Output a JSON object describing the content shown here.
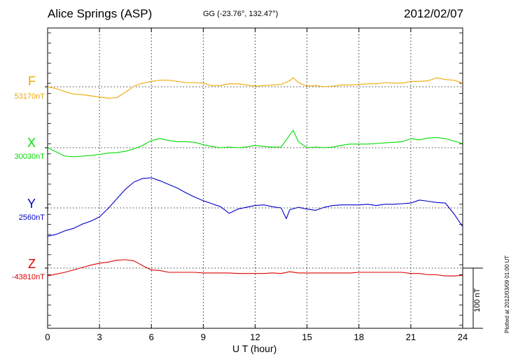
{
  "header": {
    "station": "Alice Springs (ASP)",
    "coords": "GG (-23.76°, 132.47°)",
    "date": "2012/02/07"
  },
  "components": [
    {
      "letter": "F",
      "baseline": "53170nT",
      "color": "#f0a800"
    },
    {
      "letter": "X",
      "baseline": "30030nT",
      "color": "#00dd00"
    },
    {
      "letter": "Y",
      "baseline": "2560nT",
      "color": "#0000cc"
    },
    {
      "letter": "Z",
      "baseline": "-43810nT",
      "color": "#dd0000"
    }
  ],
  "scale_bar": {
    "label": "100 nT",
    "value_nT": 100
  },
  "footer": {
    "plotted": "Plotted at 2012/03/09 01:00 UT"
  },
  "chart_data": {
    "type": "line",
    "title": "Alice Springs (ASP)",
    "xlabel": "U T (hour)",
    "ylabel": "",
    "xlim": [
      0,
      24
    ],
    "x_ticks": [
      0,
      3,
      6,
      9,
      12,
      15,
      18,
      21,
      24
    ],
    "grid": true,
    "units": "nT",
    "series": [
      {
        "name": "F",
        "baseline_nT": 53170,
        "x": [
          0,
          0.5,
          1,
          1.5,
          2,
          2.5,
          3,
          3.5,
          4,
          4.5,
          5,
          5.5,
          6,
          6.5,
          7,
          7.5,
          8,
          8.5,
          9,
          9.5,
          10,
          10.5,
          11,
          11.5,
          12,
          12.5,
          13,
          13.5,
          14,
          14.2,
          14.5,
          15,
          15.5,
          16,
          16.5,
          17,
          17.5,
          18,
          18.5,
          19,
          19.5,
          20,
          20.5,
          21,
          21.5,
          22,
          22.5,
          23,
          23.5,
          24
        ],
        "values": [
          0,
          -3,
          -8,
          -12,
          -13,
          -15,
          -17,
          -19,
          -18,
          -9,
          1,
          6,
          9,
          11,
          11,
          9,
          7,
          7,
          6,
          2,
          2,
          5,
          5,
          3,
          1,
          2,
          3,
          4,
          10,
          15,
          7,
          1,
          2,
          0,
          1,
          3,
          3,
          4,
          5,
          5,
          7,
          6,
          6,
          9,
          9,
          10,
          15,
          12,
          11,
          6
        ]
      },
      {
        "name": "X",
        "baseline_nT": 30030,
        "x": [
          0,
          0.5,
          1,
          1.5,
          2,
          2.5,
          3,
          3.5,
          4,
          4.5,
          5,
          5.5,
          6,
          6.5,
          7,
          7.5,
          8,
          8.5,
          9,
          9.5,
          10,
          10.5,
          11,
          11.5,
          12,
          12.5,
          13,
          13.5,
          14,
          14.2,
          14.5,
          15,
          15.5,
          16,
          16.5,
          17,
          17.5,
          18,
          18.5,
          19,
          19.5,
          20,
          20.5,
          21,
          21.5,
          22,
          22.5,
          23,
          23.5,
          24
        ],
        "values": [
          0,
          -7,
          -14,
          -15,
          -14,
          -13,
          -11,
          -9,
          -8,
          -6,
          -2,
          4,
          12,
          15,
          12,
          10,
          10,
          9,
          5,
          2,
          0,
          1,
          0,
          1,
          4,
          2,
          1,
          1,
          21,
          29,
          10,
          0,
          1,
          0,
          1,
          4,
          6,
          6,
          6,
          7,
          8,
          9,
          10,
          15,
          13,
          16,
          17,
          15,
          11,
          7
        ]
      },
      {
        "name": "Y",
        "baseline_nT": 2560,
        "x": [
          0,
          0.5,
          1,
          1.5,
          2,
          2.5,
          3,
          3.5,
          4,
          4.5,
          5,
          5.5,
          6,
          6.5,
          7,
          7.5,
          8,
          8.5,
          9,
          9.5,
          10,
          10.5,
          11,
          11.5,
          12,
          12.5,
          13,
          13.5,
          13.8,
          14,
          14.5,
          15,
          15.5,
          16,
          16.5,
          17,
          17.5,
          18,
          18.5,
          19,
          19.5,
          20,
          20.5,
          21,
          21.5,
          22,
          22.5,
          23,
          23.5,
          24
        ],
        "values": [
          -47,
          -44,
          -38,
          -34,
          -27,
          -22,
          -15,
          -1,
          15,
          31,
          43,
          49,
          50,
          45,
          39,
          33,
          25,
          18,
          12,
          7,
          2,
          -9,
          -2,
          1,
          4,
          5,
          2,
          0,
          -18,
          -3,
          1,
          -2,
          -4,
          1,
          4,
          5,
          5,
          5,
          6,
          4,
          6,
          6,
          7,
          8,
          13,
          11,
          9,
          8,
          -10,
          -31
        ]
      },
      {
        "name": "Z",
        "baseline_nT": -43810,
        "x": [
          0,
          0.5,
          1,
          1.5,
          2,
          2.5,
          3,
          3.5,
          4,
          4.5,
          5,
          5.5,
          6,
          6.5,
          7,
          7.5,
          8,
          8.5,
          9,
          9.5,
          10,
          10.5,
          11,
          11.5,
          12,
          12.5,
          13,
          13.5,
          14,
          14.5,
          15,
          15.5,
          16,
          16.5,
          17,
          17.5,
          18,
          18.5,
          19,
          19.5,
          20,
          20.5,
          21,
          21.5,
          22,
          22.5,
          23,
          23.5,
          24
        ],
        "values": [
          -13,
          -10,
          -7,
          -3,
          1,
          5,
          8,
          10,
          13,
          14,
          12,
          4,
          -3,
          -4,
          -7,
          -7,
          -7,
          -7,
          -8,
          -8,
          -8,
          -8,
          -9,
          -9,
          -9,
          -9,
          -8,
          -9,
          -6,
          -8,
          -8,
          -8,
          -8,
          -8,
          -8,
          -8,
          -7,
          -7,
          -7,
          -7,
          -7,
          -7,
          -9,
          -9,
          -11,
          -11,
          -13,
          -13,
          -12
        ]
      }
    ]
  }
}
